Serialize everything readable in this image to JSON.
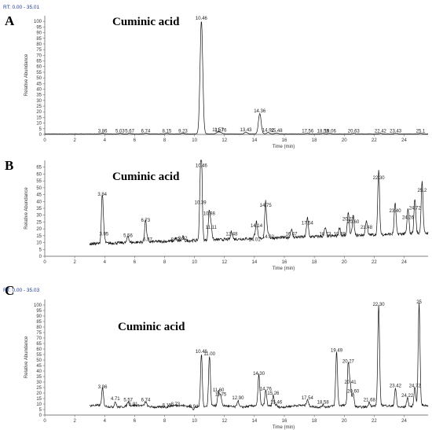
{
  "chart_data": [
    {
      "type": "line",
      "panel_letter": "A",
      "rt_range": "RT: 0.00 - 35.01",
      "title": "Cuminic acid",
      "xlabel": "Time (min)",
      "ylabel": "Relative Abundance",
      "xlim": [
        0,
        25.6
      ],
      "ylim": [
        0,
        105
      ],
      "xticks": [
        0,
        2,
        4,
        6,
        8,
        10,
        12,
        14,
        16,
        18,
        20,
        22,
        24
      ],
      "yticks": [
        0,
        5,
        10,
        15,
        20,
        25,
        30,
        35,
        40,
        45,
        50,
        55,
        60,
        65,
        70,
        75,
        80,
        85,
        90,
        95,
        100
      ],
      "peaks": [
        {
          "rt": 3.86,
          "label": "3.86",
          "height": 0.5
        },
        {
          "rt": 5.03,
          "label": "5.03",
          "height": 0.4
        },
        {
          "rt": 5.67,
          "label": "5.67",
          "height": 0.4
        },
        {
          "rt": 6.74,
          "label": "6.74",
          "height": 0.5
        },
        {
          "rt": 8.15,
          "label": "8.15",
          "height": 0.4
        },
        {
          "rt": 9.23,
          "label": "9.23",
          "height": 0.5
        },
        {
          "rt": 10.46,
          "label": "10.46",
          "height": 100
        },
        {
          "rt": 11.57,
          "label": "11.57",
          "height": 1.5
        },
        {
          "rt": 11.76,
          "label": "11.76",
          "height": 1.2
        },
        {
          "rt": 13.43,
          "label": "13.43",
          "height": 1.5
        },
        {
          "rt": 14.36,
          "label": "14.36",
          "height": 18
        },
        {
          "rt": 14.92,
          "label": "14.92",
          "height": 1.2
        },
        {
          "rt": 15.48,
          "label": "15.48",
          "height": 0.8
        },
        {
          "rt": 17.56,
          "label": "17.56",
          "height": 0.4
        },
        {
          "rt": 18.58,
          "label": "18.58",
          "height": 0.4
        },
        {
          "rt": 19.06,
          "label": "19.06",
          "height": 0.4
        },
        {
          "rt": 20.63,
          "label": "20.63",
          "height": 0.4
        },
        {
          "rt": 22.42,
          "label": "22.42",
          "height": 0.4
        },
        {
          "rt": 23.43,
          "label": "23.43",
          "height": 0.4
        },
        {
          "rt": 25.1,
          "label": "25.1",
          "height": 0.4
        }
      ]
    },
    {
      "type": "line",
      "panel_letter": "B",
      "title": "Cuminic acid",
      "xlabel": "Time (min)",
      "ylabel": "Relative Abundance",
      "xlim": [
        0,
        25.6
      ],
      "ylim": [
        0,
        70
      ],
      "xticks": [
        0,
        2,
        4,
        6,
        8,
        10,
        12,
        14,
        16,
        18,
        20,
        22,
        24
      ],
      "yticks": [
        0,
        5,
        10,
        15,
        20,
        25,
        30,
        35,
        40,
        45,
        50,
        55,
        60,
        65
      ],
      "peaks": [
        {
          "rt": 3.84,
          "label": "3.84",
          "height": 43
        },
        {
          "rt": 3.95,
          "label": "3.95",
          "height": 14
        },
        {
          "rt": 5.56,
          "label": "5.56",
          "height": 13
        },
        {
          "rt": 6.73,
          "label": "6.73",
          "height": 24
        },
        {
          "rt": 6.87,
          "label": "6.87",
          "height": 10
        },
        {
          "rt": 8.73,
          "label": "8.73",
          "height": 10
        },
        {
          "rt": 9.22,
          "label": "9.22",
          "height": 11
        },
        {
          "rt": 10.46,
          "label": "10.46",
          "height": 64
        },
        {
          "rt": 10.39,
          "label": "10.39",
          "height": 37
        },
        {
          "rt": 10.98,
          "label": "10.98",
          "height": 29
        },
        {
          "rt": 11.11,
          "label": "11.11",
          "height": 19
        },
        {
          "rt": 12.48,
          "label": "12.48",
          "height": 14
        },
        {
          "rt": 14.01,
          "label": "14.01",
          "height": 10
        },
        {
          "rt": 14.14,
          "label": "14.14",
          "height": 20
        },
        {
          "rt": 14.75,
          "label": "14.75",
          "height": 35
        },
        {
          "rt": 14.92,
          "label": "14.92",
          "height": 12
        },
        {
          "rt": 16.47,
          "label": "16.47",
          "height": 14
        },
        {
          "rt": 17.54,
          "label": "17.54",
          "height": 22
        },
        {
          "rt": 18.73,
          "label": "18.73",
          "height": 14
        },
        {
          "rt": 19.69,
          "label": "19.69",
          "height": 14
        },
        {
          "rt": 20.27,
          "label": "20.27",
          "height": 25
        },
        {
          "rt": 20.6,
          "label": "20.60",
          "height": 23
        },
        {
          "rt": 21.48,
          "label": "21.48",
          "height": 19
        },
        {
          "rt": 22.3,
          "label": "22.30",
          "height": 55
        },
        {
          "rt": 23.4,
          "label": "23.40",
          "height": 31
        },
        {
          "rt": 24.26,
          "label": "24.26",
          "height": 26
        },
        {
          "rt": 24.72,
          "label": "24.72",
          "height": 33
        },
        {
          "rt": 25.2,
          "label": "25.2",
          "height": 46
        }
      ]
    },
    {
      "type": "line",
      "panel_letter": "C",
      "rt_range": "RT: 0.00 - 35.03",
      "title": "Cuminic acid",
      "xlabel": "Time (min)",
      "ylabel": "Relative Abundance",
      "xlim": [
        0,
        25.6
      ],
      "ylim": [
        0,
        105
      ],
      "xticks": [
        0,
        2,
        4,
        6,
        8,
        10,
        12,
        14,
        16,
        18,
        20,
        22,
        24
      ],
      "yticks": [
        0,
        5,
        10,
        15,
        20,
        25,
        30,
        35,
        40,
        45,
        50,
        55,
        60,
        65,
        70,
        75,
        80,
        85,
        90,
        95,
        100
      ],
      "peaks": [
        {
          "rt": 3.86,
          "label": "3.86",
          "height": 23
        },
        {
          "rt": 4.71,
          "label": "4.71",
          "height": 12
        },
        {
          "rt": 5.57,
          "label": "5.57",
          "height": 11
        },
        {
          "rt": 5.91,
          "label": "5.91",
          "height": 7
        },
        {
          "rt": 6.74,
          "label": "6.74",
          "height": 11
        },
        {
          "rt": 8.15,
          "label": "8.15",
          "height": 6
        },
        {
          "rt": 8.73,
          "label": "8.73",
          "height": 7
        },
        {
          "rt": 9.94,
          "label": "9.94",
          "height": 5
        },
        {
          "rt": 10.46,
          "label": "10.46",
          "height": 55
        },
        {
          "rt": 11.0,
          "label": "11.00",
          "height": 53
        },
        {
          "rt": 11.6,
          "label": "11.60",
          "height": 20
        },
        {
          "rt": 11.75,
          "label": "11.75",
          "height": 16
        },
        {
          "rt": 12.9,
          "label": "12.90",
          "height": 13
        },
        {
          "rt": 14.3,
          "label": "14.30",
          "height": 35
        },
        {
          "rt": 14.76,
          "label": "14.76",
          "height": 21
        },
        {
          "rt": 15.26,
          "label": "15.26",
          "height": 17
        },
        {
          "rt": 15.46,
          "label": "15.46",
          "height": 9
        },
        {
          "rt": 17.54,
          "label": "17.54",
          "height": 13
        },
        {
          "rt": 18.58,
          "label": "18.58",
          "height": 9
        },
        {
          "rt": 19.49,
          "label": "19.49",
          "height": 56
        },
        {
          "rt": 20.27,
          "label": "20.27",
          "height": 46
        },
        {
          "rt": 20.41,
          "label": "20.41",
          "height": 27
        },
        {
          "rt": 20.6,
          "label": "20.60",
          "height": 19
        },
        {
          "rt": 21.68,
          "label": "21.68",
          "height": 11
        },
        {
          "rt": 22.3,
          "label": "22.30",
          "height": 98
        },
        {
          "rt": 23.42,
          "label": "23.42",
          "height": 24
        },
        {
          "rt": 24.22,
          "label": "24.22",
          "height": 15
        },
        {
          "rt": 24.72,
          "label": "24.72",
          "height": 24
        },
        {
          "rt": 25.0,
          "label": "25",
          "height": 100
        }
      ]
    }
  ]
}
